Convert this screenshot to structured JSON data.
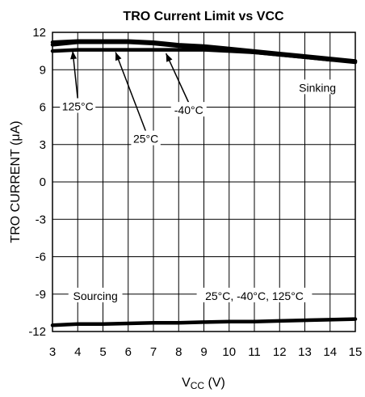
{
  "chart_data": {
    "type": "line",
    "title": "TRO Current Limit vs VCC",
    "xlabel": {
      "main": "V",
      "sub": "CC",
      "unit": " (V)"
    },
    "ylabel": "TRO CURRENT (μA)",
    "xlim": [
      3,
      15
    ],
    "ylim": [
      -12,
      12
    ],
    "xticks": [
      3,
      4,
      5,
      6,
      7,
      8,
      9,
      10,
      11,
      12,
      13,
      14,
      15
    ],
    "yticks": [
      12,
      9,
      6,
      3,
      0,
      -3,
      -6,
      -9,
      -12
    ],
    "grid": true,
    "series": [
      {
        "name": "125°C",
        "x": [
          3,
          4,
          5,
          6,
          7,
          8,
          9,
          10,
          11,
          12,
          13,
          14,
          15
        ],
        "y": [
          11.2,
          11.3,
          11.3,
          11.3,
          11.2,
          11.0,
          10.9,
          10.7,
          10.5,
          10.3,
          10.1,
          9.9,
          9.7
        ]
      },
      {
        "name": "25°C",
        "x": [
          3,
          4,
          5,
          6,
          7,
          8,
          9,
          10,
          11,
          12,
          13,
          14,
          15
        ],
        "y": [
          11.0,
          11.2,
          11.2,
          11.2,
          11.1,
          10.9,
          10.8,
          10.6,
          10.4,
          10.2,
          10.0,
          9.8,
          9.6
        ]
      },
      {
        "name": "-40°C",
        "x": [
          3,
          4,
          5,
          6,
          7,
          8,
          9,
          10,
          11,
          12,
          13,
          14,
          15
        ],
        "y": [
          10.5,
          10.6,
          10.6,
          10.6,
          10.6,
          10.6,
          10.6,
          10.5,
          10.4,
          10.2,
          10.0,
          9.8,
          9.7
        ]
      },
      {
        "name": "Sourcing",
        "x": [
          3,
          4,
          5,
          6,
          7,
          8,
          9,
          10,
          11,
          12,
          13,
          14,
          15
        ],
        "y": [
          -11.5,
          -11.4,
          -11.4,
          -11.35,
          -11.3,
          -11.3,
          -11.25,
          -11.2,
          -11.2,
          -11.15,
          -11.1,
          -11.05,
          -11.0
        ]
      }
    ],
    "annotations": [
      {
        "text": "Sinking",
        "x": 13.5,
        "y": 7.5
      },
      {
        "text": "Sourcing",
        "x": 4.7,
        "y": -9.2
      },
      {
        "text": "25°C, -40°C, 125°C",
        "x": 11.0,
        "y": -9.2
      },
      {
        "text": "125°C",
        "x": 4.0,
        "y": 6.0,
        "ax": 3.8,
        "ay": 10.9
      },
      {
        "text": "25°C",
        "x": 6.7,
        "y": 3.4,
        "ax": 5.5,
        "ay": 10.8
      },
      {
        "text": "-40°C",
        "x": 8.4,
        "y": 5.7,
        "ax": 7.5,
        "ay": 10.7
      }
    ]
  }
}
